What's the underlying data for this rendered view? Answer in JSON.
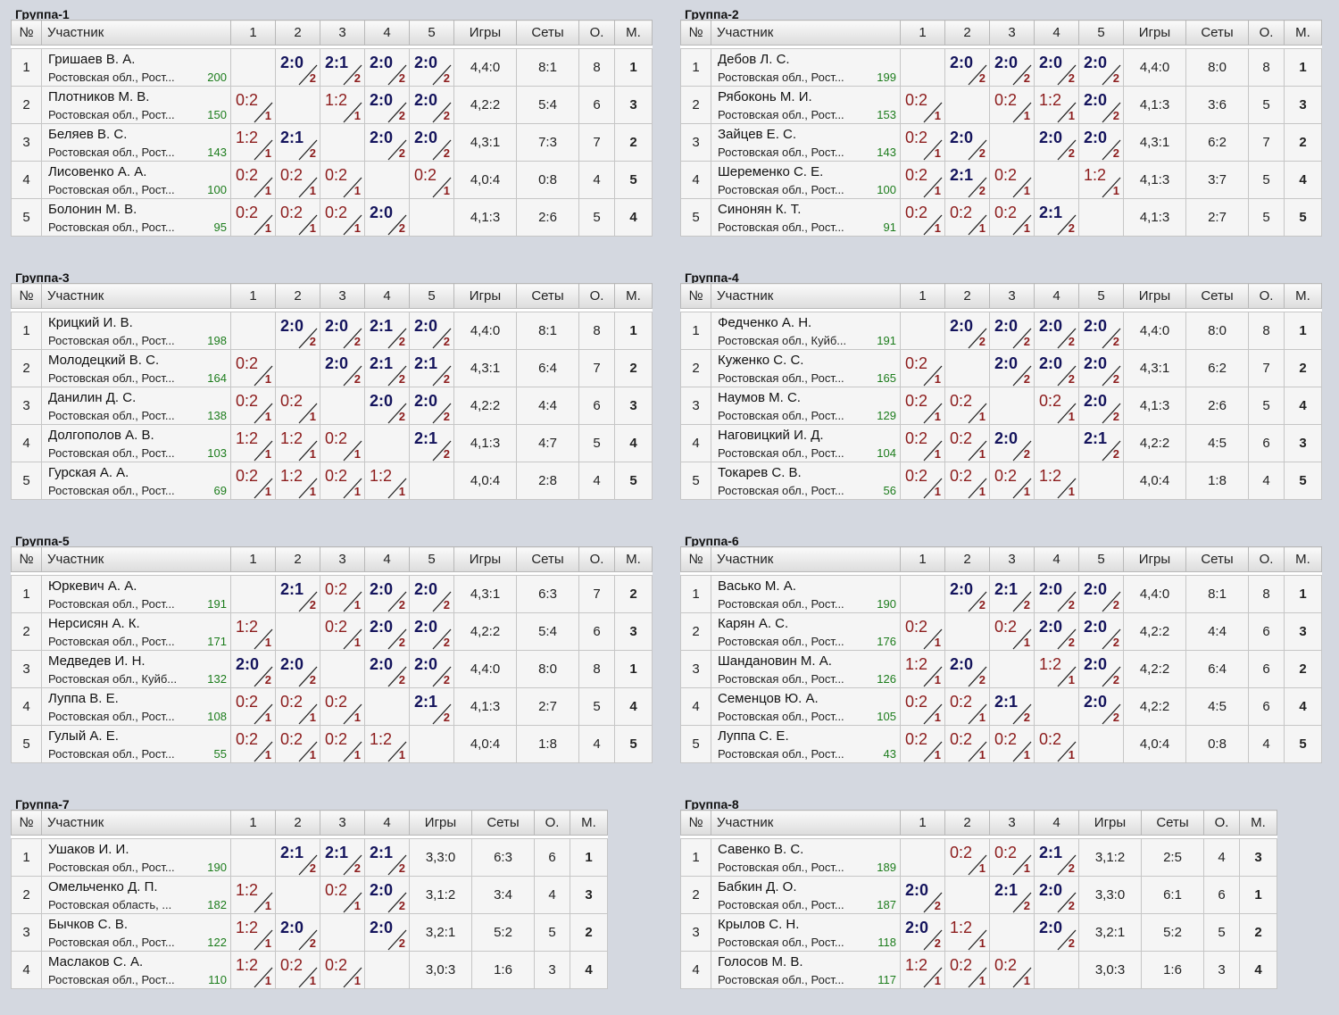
{
  "headers": {
    "no": "№",
    "participant": "Участник",
    "games": "Игры",
    "sets": "Сеты",
    "points": "О.",
    "place": "М."
  },
  "groups": [
    {
      "title": "Группа-1",
      "rows": [
        {
          "n": "1",
          "name": "Гришаев В. А.",
          "region": "Ростовская обл., Рост...",
          "rating": "200",
          "scores": [
            "2:0",
            "2:1",
            "2:0",
            "2:0"
          ],
          "games": "4,4:0",
          "sets": "8:1",
          "points": "8",
          "place": "1"
        },
        {
          "n": "2",
          "name": "Плотников М. В.",
          "region": "Ростовская обл., Рост...",
          "rating": "150",
          "scores": [
            "0:2",
            "1:2",
            "2:0",
            "2:0"
          ],
          "games": "4,2:2",
          "sets": "5:4",
          "points": "6",
          "place": "3"
        },
        {
          "n": "3",
          "name": "Беляев В. С.",
          "region": "Ростовская обл., Рост...",
          "rating": "143",
          "scores": [
            "1:2",
            "2:1",
            "2:0",
            "2:0"
          ],
          "games": "4,3:1",
          "sets": "7:3",
          "points": "7",
          "place": "2"
        },
        {
          "n": "4",
          "name": "Лисовенко А. А.",
          "region": "Ростовская обл., Рост...",
          "rating": "100",
          "scores": [
            "0:2",
            "0:2",
            "0:2",
            "0:2"
          ],
          "games": "4,0:4",
          "sets": "0:8",
          "points": "4",
          "place": "5"
        },
        {
          "n": "5",
          "name": "Болонин М. В.",
          "region": "Ростовская обл., Рост...",
          "rating": "95",
          "scores": [
            "0:2",
            "0:2",
            "0:2",
            "2:0"
          ],
          "games": "4,1:3",
          "sets": "2:6",
          "points": "5",
          "place": "4"
        }
      ]
    },
    {
      "title": "Группа-2",
      "rows": [
        {
          "n": "1",
          "name": "Дебов Л. С.",
          "region": "Ростовская обл., Рост...",
          "rating": "199",
          "scores": [
            "2:0",
            "2:0",
            "2:0",
            "2:0"
          ],
          "games": "4,4:0",
          "sets": "8:0",
          "points": "8",
          "place": "1"
        },
        {
          "n": "2",
          "name": "Рябоконь М. И.",
          "region": "Ростовская обл., Рост...",
          "rating": "153",
          "scores": [
            "0:2",
            "0:2",
            "1:2",
            "2:0"
          ],
          "games": "4,1:3",
          "sets": "3:6",
          "points": "5",
          "place": "3"
        },
        {
          "n": "3",
          "name": "Зайцев Е. С.",
          "region": "Ростовская обл., Рост...",
          "rating": "143",
          "scores": [
            "0:2",
            "2:0",
            "2:0",
            "2:0"
          ],
          "games": "4,3:1",
          "sets": "6:2",
          "points": "7",
          "place": "2"
        },
        {
          "n": "4",
          "name": "Шеременко С. Е.",
          "region": "Ростовская обл., Рост...",
          "rating": "100",
          "scores": [
            "0:2",
            "2:1",
            "0:2",
            "1:2"
          ],
          "games": "4,1:3",
          "sets": "3:7",
          "points": "5",
          "place": "4"
        },
        {
          "n": "5",
          "name": "Синонян К. Т.",
          "region": "Ростовская обл., Рост...",
          "rating": "91",
          "scores": [
            "0:2",
            "0:2",
            "0:2",
            "2:1"
          ],
          "games": "4,1:3",
          "sets": "2:7",
          "points": "5",
          "place": "5"
        }
      ]
    },
    {
      "title": "Группа-3",
      "rows": [
        {
          "n": "1",
          "name": "Крицкий И. В.",
          "region": "Ростовская обл., Рост...",
          "rating": "198",
          "scores": [
            "2:0",
            "2:0",
            "2:1",
            "2:0"
          ],
          "games": "4,4:0",
          "sets": "8:1",
          "points": "8",
          "place": "1"
        },
        {
          "n": "2",
          "name": "Молодецкий В. С.",
          "region": "Ростовская обл., Рост...",
          "rating": "164",
          "scores": [
            "0:2",
            "2:0",
            "2:1",
            "2:1"
          ],
          "games": "4,3:1",
          "sets": "6:4",
          "points": "7",
          "place": "2"
        },
        {
          "n": "3",
          "name": "Данилин Д. С.",
          "region": "Ростовская обл., Рост...",
          "rating": "138",
          "scores": [
            "0:2",
            "0:2",
            "2:0",
            "2:0"
          ],
          "games": "4,2:2",
          "sets": "4:4",
          "points": "6",
          "place": "3"
        },
        {
          "n": "4",
          "name": "Долгополов А. В.",
          "region": "Ростовская обл., Рост...",
          "rating": "103",
          "scores": [
            "1:2",
            "1:2",
            "0:2",
            "2:1"
          ],
          "games": "4,1:3",
          "sets": "4:7",
          "points": "5",
          "place": "4"
        },
        {
          "n": "5",
          "name": "Гурская А. А.",
          "region": "Ростовская обл., Рост...",
          "rating": "69",
          "scores": [
            "0:2",
            "1:2",
            "0:2",
            "1:2"
          ],
          "games": "4,0:4",
          "sets": "2:8",
          "points": "4",
          "place": "5"
        }
      ]
    },
    {
      "title": "Группа-4",
      "rows": [
        {
          "n": "1",
          "name": "Федченко А. Н.",
          "region": "Ростовская обл., Куйб...",
          "rating": "191",
          "scores": [
            "2:0",
            "2:0",
            "2:0",
            "2:0"
          ],
          "games": "4,4:0",
          "sets": "8:0",
          "points": "8",
          "place": "1"
        },
        {
          "n": "2",
          "name": "Куженко С. С.",
          "region": "Ростовская обл., Рост...",
          "rating": "165",
          "scores": [
            "0:2",
            "2:0",
            "2:0",
            "2:0"
          ],
          "games": "4,3:1",
          "sets": "6:2",
          "points": "7",
          "place": "2"
        },
        {
          "n": "3",
          "name": "Наумов М. С.",
          "region": "Ростовская обл., Рост...",
          "rating": "129",
          "scores": [
            "0:2",
            "0:2",
            "0:2",
            "2:0"
          ],
          "games": "4,1:3",
          "sets": "2:6",
          "points": "5",
          "place": "4"
        },
        {
          "n": "4",
          "name": "Наговицкий И. Д.",
          "region": "Ростовская обл., Рост...",
          "rating": "104",
          "scores": [
            "0:2",
            "0:2",
            "2:0",
            "2:1"
          ],
          "games": "4,2:2",
          "sets": "4:5",
          "points": "6",
          "place": "3"
        },
        {
          "n": "5",
          "name": "Токарев С. В.",
          "region": "Ростовская обл., Рост...",
          "rating": "56",
          "scores": [
            "0:2",
            "0:2",
            "0:2",
            "1:2"
          ],
          "games": "4,0:4",
          "sets": "1:8",
          "points": "4",
          "place": "5"
        }
      ]
    },
    {
      "title": "Группа-5",
      "rows": [
        {
          "n": "1",
          "name": "Юркевич А. А.",
          "region": "Ростовская обл., Рост...",
          "rating": "191",
          "scores": [
            "2:1",
            "0:2",
            "2:0",
            "2:0"
          ],
          "games": "4,3:1",
          "sets": "6:3",
          "points": "7",
          "place": "2"
        },
        {
          "n": "2",
          "name": "Нерсисян А. К.",
          "region": "Ростовская обл., Рост...",
          "rating": "171",
          "scores": [
            "1:2",
            "0:2",
            "2:0",
            "2:0"
          ],
          "games": "4,2:2",
          "sets": "5:4",
          "points": "6",
          "place": "3"
        },
        {
          "n": "3",
          "name": "Медведев И. Н.",
          "region": "Ростовская обл., Куйб...",
          "rating": "132",
          "scores": [
            "2:0",
            "2:0",
            "2:0",
            "2:0"
          ],
          "games": "4,4:0",
          "sets": "8:0",
          "points": "8",
          "place": "1"
        },
        {
          "n": "4",
          "name": "Луппа В. Е.",
          "region": "Ростовская обл., Рост...",
          "rating": "108",
          "scores": [
            "0:2",
            "0:2",
            "0:2",
            "2:1"
          ],
          "games": "4,1:3",
          "sets": "2:7",
          "points": "5",
          "place": "4"
        },
        {
          "n": "5",
          "name": "Гулый А. Е.",
          "region": "Ростовская обл., Рост...",
          "rating": "55",
          "scores": [
            "0:2",
            "0:2",
            "0:2",
            "1:2"
          ],
          "games": "4,0:4",
          "sets": "1:8",
          "points": "4",
          "place": "5"
        }
      ]
    },
    {
      "title": "Группа-6",
      "rows": [
        {
          "n": "1",
          "name": "Васько М. А.",
          "region": "Ростовская обл., Рост...",
          "rating": "190",
          "scores": [
            "2:0",
            "2:1",
            "2:0",
            "2:0"
          ],
          "games": "4,4:0",
          "sets": "8:1",
          "points": "8",
          "place": "1"
        },
        {
          "n": "2",
          "name": "Карян А. С.",
          "region": "Ростовская обл., Рост...",
          "rating": "176",
          "scores": [
            "0:2",
            "0:2",
            "2:0",
            "2:0"
          ],
          "games": "4,2:2",
          "sets": "4:4",
          "points": "6",
          "place": "3"
        },
        {
          "n": "3",
          "name": "Шандановин М. А.",
          "region": "Ростовская обл., Рост...",
          "rating": "126",
          "scores": [
            "1:2",
            "2:0",
            "1:2",
            "2:0"
          ],
          "games": "4,2:2",
          "sets": "6:4",
          "points": "6",
          "place": "2"
        },
        {
          "n": "4",
          "name": "Семенцов Ю. А.",
          "region": "Ростовская обл., Рост...",
          "rating": "105",
          "scores": [
            "0:2",
            "0:2",
            "2:1",
            "2:0"
          ],
          "games": "4,2:2",
          "sets": "4:5",
          "points": "6",
          "place": "4"
        },
        {
          "n": "5",
          "name": "Луппа С. Е.",
          "region": "Ростовская обл., Рост...",
          "rating": "43",
          "scores": [
            "0:2",
            "0:2",
            "0:2",
            "0:2"
          ],
          "games": "4,0:4",
          "sets": "0:8",
          "points": "4",
          "place": "5"
        }
      ]
    },
    {
      "title": "Группа-7",
      "rows": [
        {
          "n": "1",
          "name": "Ушаков И. И.",
          "region": "Ростовская обл., Рост...",
          "rating": "190",
          "scores": [
            "2:1",
            "2:1",
            "2:1"
          ],
          "games": "3,3:0",
          "sets": "6:3",
          "points": "6",
          "place": "1"
        },
        {
          "n": "2",
          "name": "Омельченко Д. П.",
          "region": "Ростовская область, ...",
          "rating": "182",
          "scores": [
            "1:2",
            "0:2",
            "2:0"
          ],
          "games": "3,1:2",
          "sets": "3:4",
          "points": "4",
          "place": "3"
        },
        {
          "n": "3",
          "name": "Бычков С. В.",
          "region": "Ростовская обл., Рост...",
          "rating": "122",
          "scores": [
            "1:2",
            "2:0",
            "2:0"
          ],
          "games": "3,2:1",
          "sets": "5:2",
          "points": "5",
          "place": "2"
        },
        {
          "n": "4",
          "name": "Маслаков С. А.",
          "region": "Ростовская обл., Рост...",
          "rating": "110",
          "scores": [
            "1:2",
            "0:2",
            "0:2"
          ],
          "games": "3,0:3",
          "sets": "1:6",
          "points": "3",
          "place": "4"
        }
      ]
    },
    {
      "title": "Группа-8",
      "rows": [
        {
          "n": "1",
          "name": "Савенко В. С.",
          "region": "Ростовская обл., Рост...",
          "rating": "189",
          "scores": [
            "0:2",
            "0:2",
            "2:1"
          ],
          "games": "3,1:2",
          "sets": "2:5",
          "points": "4",
          "place": "3"
        },
        {
          "n": "2",
          "name": "Бабкин Д. О.",
          "region": "Ростовская обл., Рост...",
          "rating": "187",
          "scores": [
            "2:0",
            "2:1",
            "2:0"
          ],
          "games": "3,3:0",
          "sets": "6:1",
          "points": "6",
          "place": "1"
        },
        {
          "n": "3",
          "name": "Крылов С. Н.",
          "region": "Ростовская обл., Рост...",
          "rating": "118",
          "scores": [
            "2:0",
            "1:2",
            "2:0"
          ],
          "games": "3,2:1",
          "sets": "5:2",
          "points": "5",
          "place": "2"
        },
        {
          "n": "4",
          "name": "Голосов М. В.",
          "region": "Ростовская обл., Рост...",
          "rating": "117",
          "scores": [
            "1:2",
            "0:2",
            "0:2"
          ],
          "games": "3,0:3",
          "sets": "1:6",
          "points": "3",
          "place": "4"
        }
      ]
    }
  ]
}
